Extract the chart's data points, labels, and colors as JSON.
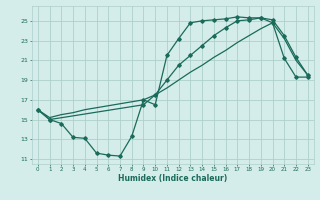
{
  "xlabel": "Humidex (Indice chaleur)",
  "xlim": [
    -0.5,
    23.5
  ],
  "ylim": [
    10.5,
    26.5
  ],
  "yticks": [
    11,
    13,
    15,
    17,
    19,
    21,
    23,
    25
  ],
  "xticks": [
    0,
    1,
    2,
    3,
    4,
    5,
    6,
    7,
    8,
    9,
    10,
    11,
    12,
    13,
    14,
    15,
    16,
    17,
    18,
    19,
    20,
    21,
    22,
    23
  ],
  "line_color": "#1a6b5a",
  "bg_color": "#d4ecea",
  "grid_color": "#aed0cc",
  "line1_x": [
    0,
    1,
    2,
    3,
    4,
    5,
    6,
    7,
    8,
    9,
    10,
    11,
    12,
    13,
    14,
    15,
    16,
    17,
    18,
    19,
    20,
    21,
    22,
    23
  ],
  "line1_y": [
    16.0,
    15.0,
    14.6,
    13.2,
    13.1,
    11.6,
    11.4,
    11.3,
    13.3,
    17.0,
    16.5,
    21.5,
    23.2,
    24.8,
    25.0,
    25.1,
    25.2,
    25.4,
    25.3,
    25.3,
    24.8,
    21.2,
    19.3,
    19.3
  ],
  "line2_x": [
    0,
    1,
    2,
    3,
    4,
    5,
    6,
    7,
    8,
    9,
    10,
    11,
    12,
    13,
    14,
    15,
    16,
    17,
    18,
    19,
    20,
    21,
    22,
    23
  ],
  "line2_y": [
    16.0,
    15.2,
    15.5,
    15.7,
    16.0,
    16.2,
    16.4,
    16.6,
    16.8,
    17.0,
    17.5,
    18.2,
    19.0,
    19.8,
    20.5,
    21.3,
    22.0,
    22.8,
    23.5,
    24.2,
    24.8,
    23.2,
    21.0,
    19.5
  ],
  "line3_x": [
    0,
    1,
    9,
    10,
    11,
    12,
    13,
    14,
    15,
    16,
    17,
    18,
    19,
    20,
    21,
    22,
    23
  ],
  "line3_y": [
    16.0,
    15.0,
    16.5,
    17.5,
    19.0,
    20.5,
    21.5,
    22.5,
    23.5,
    24.3,
    25.0,
    25.1,
    25.3,
    25.1,
    23.5,
    21.3,
    19.5
  ]
}
